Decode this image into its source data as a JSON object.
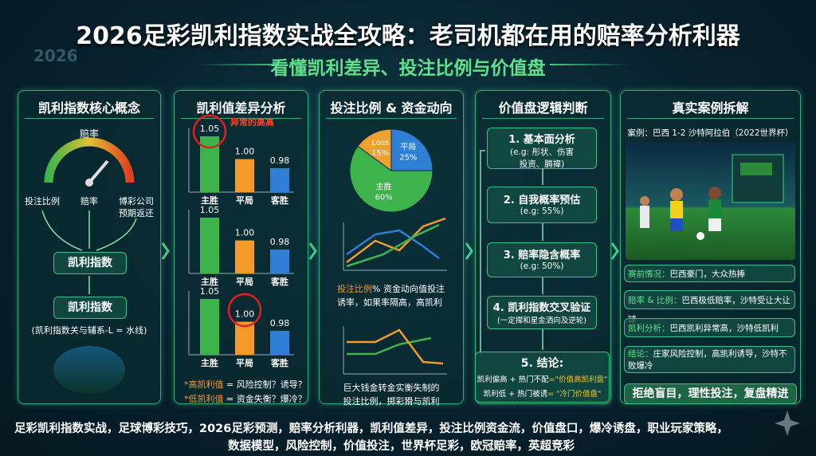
{
  "header": {
    "badge": "2026",
    "title": "2026足彩凯利指数实战全攻略：老司机都在用的赔率分析利器",
    "subtitle": "看懂凯利差异、投注比例与价值盘"
  },
  "panels": [
    {
      "title": "凯利指数核心概念",
      "gauge_label": "赔率",
      "inputs": [
        [
          "投注比例"
        ],
        [
          "赔率"
        ],
        [
          "博彩公司",
          "预期返还"
        ]
      ],
      "boxes": [
        "凯利指数",
        "凯利指数"
      ],
      "note": "(凯利指数关与辅系-L = 水线)"
    },
    {
      "title": "凯利值差异分析",
      "colors": [
        "#3cb44b",
        "#f39a2b",
        "#2f7fd6"
      ],
      "charts": [
        {
          "categories": [
            "主胜",
            "平局",
            "客胜"
          ],
          "values": [
            1.05,
            1.0,
            0.98
          ],
          "value_labels": [
            "1.05",
            "1.00",
            "0.98"
          ],
          "annotation": "异常的高高"
        },
        {
          "categories": [
            "主胜",
            "平局",
            "客胜"
          ],
          "values": [
            1.05,
            1.0,
            0.98
          ],
          "value_labels": [
            "1.05",
            "1.00",
            "0.98"
          ]
        },
        {
          "categories": [
            "主胜",
            "平局",
            "客胜"
          ],
          "values": [
            1.05,
            1.0,
            0.98
          ],
          "value_labels": [
            "1.05",
            "1.00",
            "0.98"
          ]
        }
      ],
      "notes": [
        {
          "key": "*高凯利值",
          "text": "= 风险控制？诱导？"
        },
        {
          "key": "*低凯利值",
          "text": "= 资金失衡？爆冷？"
        }
      ]
    },
    {
      "title": "投注比例 & 资金动向",
      "pie": {
        "type": "pie",
        "labels": [
          "Loss",
          "平局",
          "主胜"
        ],
        "values": [
          15,
          25,
          60
        ],
        "value_labels": [
          "15%",
          "25%",
          "60%"
        ],
        "colors": [
          "#f0a030",
          "#2f7fd6",
          "#3cb44b"
        ]
      },
      "text1": {
        "key": "投注比例",
        "lines": [
          "% 资金动向值投注",
          "诱率，如果率隔高，高凯利"
        ]
      },
      "text2": [
        "巨大钱金转金实衡失制的",
        "投注比例，掷彩猾与凯利"
      ]
    },
    {
      "title": "价值盘逻辑判断",
      "steps": [
        {
          "title": "1. 基本面分析",
          "detail": [
            "(e.g: 彤状、伤害",
            "投资、膈禕)"
          ]
        },
        {
          "title": "2. 自我概率预估",
          "detail": [
            "(e.g: 55%)"
          ]
        },
        {
          "title": "3. 赔率隐含概率",
          "detail": [
            "(e.g: 50%)"
          ]
        },
        {
          "title": "4. 凯利指数交叉验证",
          "detail": [
            "(一定撵和星金洒向及逆轮)"
          ]
        }
      ],
      "conclusion": {
        "title": "5. 结论:",
        "rows": [
          {
            "left": "凯利偏高 + 热门不配",
            "right": "=\"价值高凯利盘\""
          },
          {
            "left": "凯利低 + 热门被诱",
            "right": "= \"冷门价值盘\""
          }
        ]
      }
    },
    {
      "title": "真实案例拆解",
      "case": "案例：巴西 1-2 沙特阿拉伯（2022世界杯）",
      "items": [
        {
          "key": "赛前情况：",
          "text": [
            "巴西豪门，大众热捧"
          ]
        },
        {
          "key": "赔率 & 比例：",
          "text": [
            "巴西极低赔率，沙特受让大让球"
          ]
        },
        {
          "key": "凯利分析：",
          "text": [
            "巴西凯利异常高，沙特低凯利"
          ]
        },
        {
          "key": "结论：",
          "text": [
            "庄家风险控制，高凯利诱导，沙特不",
            "败爆冷"
          ]
        }
      ],
      "final": "拒绝盲目，理性投注，复盘精进"
    }
  ],
  "footer": [
    "足彩凯利指数实战，足球博彩技巧，2026足彩预测，赔率分析利器，凯利值差异，投注比例资金流，价值盘口，爆冷诱盘，职业玩家策略，",
    "数据模型，风险控制，价值投注，世界杯足彩，欧冠赔率，英超竞彩"
  ]
}
